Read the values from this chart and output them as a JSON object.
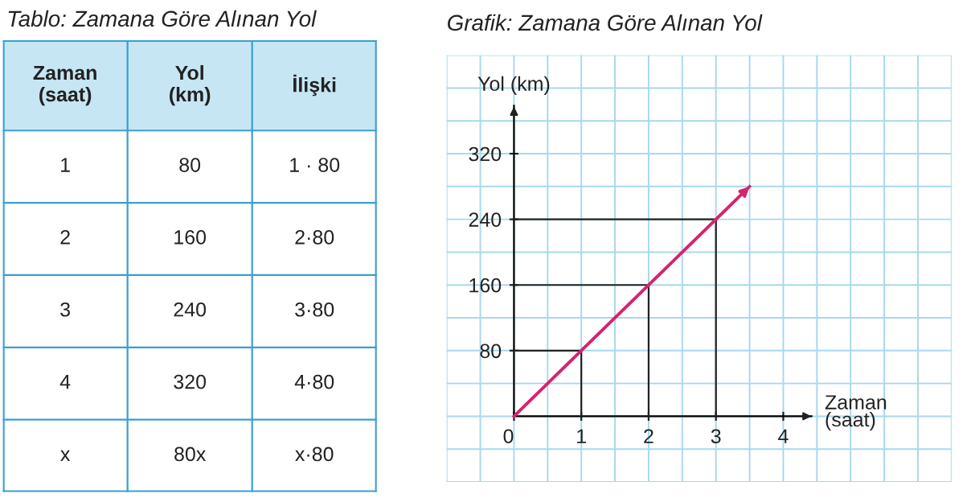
{
  "chart_data": {
    "type": "line",
    "title": "Grafik: Zamana Göre Alınan Yol",
    "xlabel": "Zaman\n(saat)",
    "ylabel": "Yol (km)",
    "annotations": [
      "Tablo: Zamana Göre Alınan Yol",
      "Zaman\n(saat)",
      "Yol\n(km)",
      "İlişki",
      "1",
      "80",
      "1 · 80",
      "2",
      "160",
      "2·80",
      "3",
      "240",
      "3·80",
      "4",
      "320",
      "4·80",
      "x",
      "80x",
      "x·80"
    ],
    "series": [
      {
        "type": "line",
        "color": "#d6246e",
        "x": [
          0,
          3.5
        ],
        "values": [
          0,
          280
        ]
      },
      {
        "type": "line",
        "color": "#222222",
        "x": [
          0,
          1,
          1
        ],
        "values": [
          80,
          80,
          0
        ]
      },
      {
        "type": "line",
        "color": "#222222",
        "x": [
          0,
          2,
          2
        ],
        "values": [
          160,
          160,
          0
        ]
      },
      {
        "type": "line",
        "color": "#222222",
        "x": [
          0,
          3,
          3
        ],
        "values": [
          240,
          240,
          0
        ]
      }
    ],
    "xlim": [
      -1,
      6.5
    ],
    "ylim": [
      -80,
      440
    ],
    "xticks": [
      {
        "value": 0,
        "label": "0"
      },
      1,
      2,
      3,
      4
    ],
    "yticks": [
      80,
      160,
      240,
      320
    ],
    "grid": true,
    "legend": false,
    "marker": "none",
    "line_style": "solid"
  }
}
